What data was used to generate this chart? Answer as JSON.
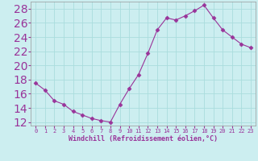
{
  "x": [
    0,
    1,
    2,
    3,
    4,
    5,
    6,
    7,
    8,
    9,
    10,
    11,
    12,
    13,
    14,
    15,
    16,
    17,
    18,
    19,
    20,
    21,
    22,
    23
  ],
  "y": [
    17.5,
    16.5,
    15.0,
    14.5,
    13.5,
    13.0,
    12.5,
    12.2,
    12.0,
    14.5,
    16.7,
    18.7,
    21.7,
    25.0,
    26.7,
    26.4,
    27.0,
    27.7,
    28.5,
    26.7,
    25.0,
    24.0,
    23.0,
    22.5
  ],
  "line_color": "#993399",
  "marker": "D",
  "marker_size": 2.5,
  "background_color": "#cceef0",
  "grid_color": "#aadddd",
  "xlabel": "Windchill (Refroidissement éolien,°C)",
  "xlabel_color": "#993399",
  "tick_color": "#993399",
  "ylim": [
    11.5,
    29
  ],
  "xlim": [
    -0.5,
    23.5
  ],
  "yticks": [
    12,
    14,
    16,
    18,
    20,
    22,
    24,
    26,
    28
  ],
  "xticks": [
    0,
    1,
    2,
    3,
    4,
    5,
    6,
    7,
    8,
    9,
    10,
    11,
    12,
    13,
    14,
    15,
    16,
    17,
    18,
    19,
    20,
    21,
    22,
    23
  ],
  "ytick_fontsize": 6.0,
  "xtick_fontsize": 5.0,
  "xlabel_fontsize": 6.0
}
